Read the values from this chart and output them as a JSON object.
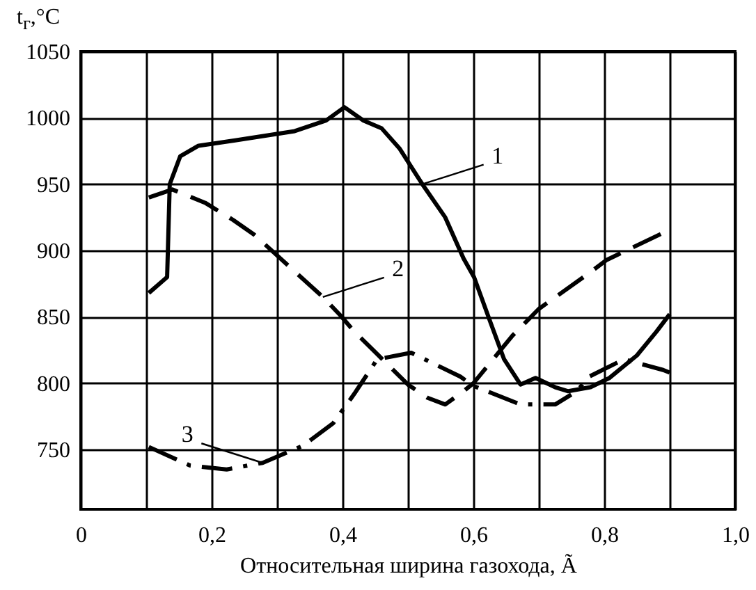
{
  "chart_data": {
    "type": "line",
    "xlabel": "Относительная ширина газохода, Ã",
    "ylabel": "t$_{г}$,°C",
    "xlim": [
      0,
      1.0
    ],
    "ylim": [
      705,
      1050
    ],
    "xticks": [
      {
        "value": 0,
        "label": "0"
      },
      {
        "value": 0.1,
        "label": null
      },
      {
        "value": 0.2,
        "label": "0,2"
      },
      {
        "value": 0.3,
        "label": null
      },
      {
        "value": 0.4,
        "label": "0,4"
      },
      {
        "value": 0.5,
        "label": null
      },
      {
        "value": 0.6,
        "label": "0,6"
      },
      {
        "value": 0.7,
        "label": null
      },
      {
        "value": 0.8,
        "label": "0,8"
      },
      {
        "value": 0.9,
        "label": null
      },
      {
        "value": 1.0,
        "label": "1,0"
      }
    ],
    "yticks": [
      750,
      800,
      850,
      900,
      950,
      1000,
      1050
    ],
    "grid": true,
    "series": [
      {
        "color": "#000000",
        "line_style": "solid",
        "x": [
          0.104,
          0.132,
          0.136,
          0.152,
          0.18,
          0.236,
          0.327,
          0.375,
          0.403,
          0.432,
          0.46,
          0.487,
          0.522,
          0.557,
          0.585,
          0.601,
          0.626,
          0.647,
          0.672,
          0.695,
          0.725,
          0.745,
          0.779,
          0.808,
          0.85,
          0.88,
          0.9
        ],
        "values": [
          868,
          880,
          950,
          971,
          979,
          983,
          990,
          998,
          1008,
          998,
          992,
          977,
          950,
          925,
          894,
          880,
          846,
          818,
          799,
          804,
          797,
          794,
          797,
          804,
          821,
          839,
          852
        ]
      },
      {
        "color": "#000000",
        "line_style": "dashed",
        "x": [
          0.104,
          0.14,
          0.19,
          0.233,
          0.265,
          0.37,
          0.397,
          0.418,
          0.453,
          0.5,
          0.53,
          0.557,
          0.585,
          0.6,
          0.66,
          0.7,
          0.777,
          0.804,
          0.893
        ],
        "values": [
          940,
          946,
          936,
          923,
          912,
          865,
          851,
          839,
          822,
          799,
          789,
          784,
          794,
          800,
          836,
          856,
          883,
          893,
          914
        ]
      },
      {
        "color": "#000000",
        "line_style": "dotted",
        "x": [
          0.104,
          0.167,
          0.223,
          0.278,
          0.34,
          0.386,
          0.418,
          0.453,
          0.505,
          0.58,
          0.6,
          0.672,
          0.725,
          0.758,
          0.777,
          0.83,
          0.89,
          0.9
        ],
        "values": [
          752,
          738,
          735,
          740,
          753,
          770,
          792,
          818,
          823,
          805,
          798,
          784,
          784,
          794,
          805,
          818,
          810,
          808
        ]
      }
    ],
    "annotations": [
      {
        "text": "1",
        "x": 0.522,
        "y": 950
      },
      {
        "text": "2",
        "x": 0.37,
        "y": 865
      },
      {
        "text": "3",
        "x": 0.278,
        "y": 740
      }
    ]
  }
}
